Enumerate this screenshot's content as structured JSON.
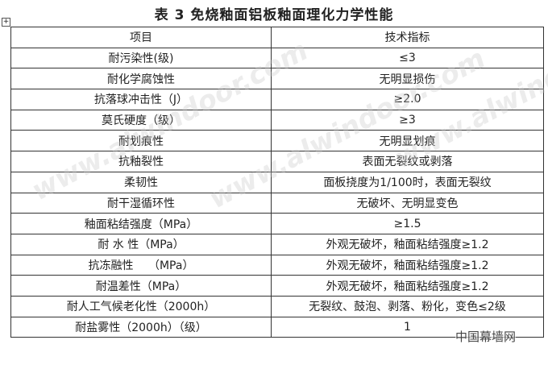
{
  "title": "表 3  免烧釉面铝板釉面理化力学性能",
  "headers": [
    "项目",
    "技术指标"
  ],
  "rows": [
    [
      "耐污染性(级)",
      "≤3"
    ],
    [
      "耐化学腐蚀性",
      "无明显损伤"
    ],
    [
      "抗落球冲击性（J）",
      "≥2.0"
    ],
    [
      "莫氏硬度（级）",
      "≥3"
    ],
    [
      "耐划痕性",
      "无明显划痕"
    ],
    [
      "抗釉裂性",
      "表面无裂纹或剥落"
    ],
    [
      "柔韧性",
      "面板挠度为1/100时，表面无裂纹"
    ],
    [
      "耐干湿循环性",
      "无破坏、无明显变色"
    ],
    [
      "釉面粘结强度（MPa）",
      "≥1.5"
    ],
    [
      "耐 水 性（MPa）",
      "外观无破坏，釉面粘结强度≥1.2"
    ],
    [
      "抗冻融性　 （MPa）",
      "外观无破坏，釉面粘结强度≥1.2"
    ],
    [
      "耐温差性（MPa）",
      "外观无破坏，釉面粘结强度≥1.2"
    ],
    [
      "耐人工气候老化性（2000h）",
      "无裂纹、鼓泡、剥落、粉化，变色≤2级"
    ],
    [
      "耐盐雾性（2000h）（级）",
      "1"
    ]
  ],
  "watermark": "www.alwindoor.com",
  "logo": "中国幕墙网"
}
